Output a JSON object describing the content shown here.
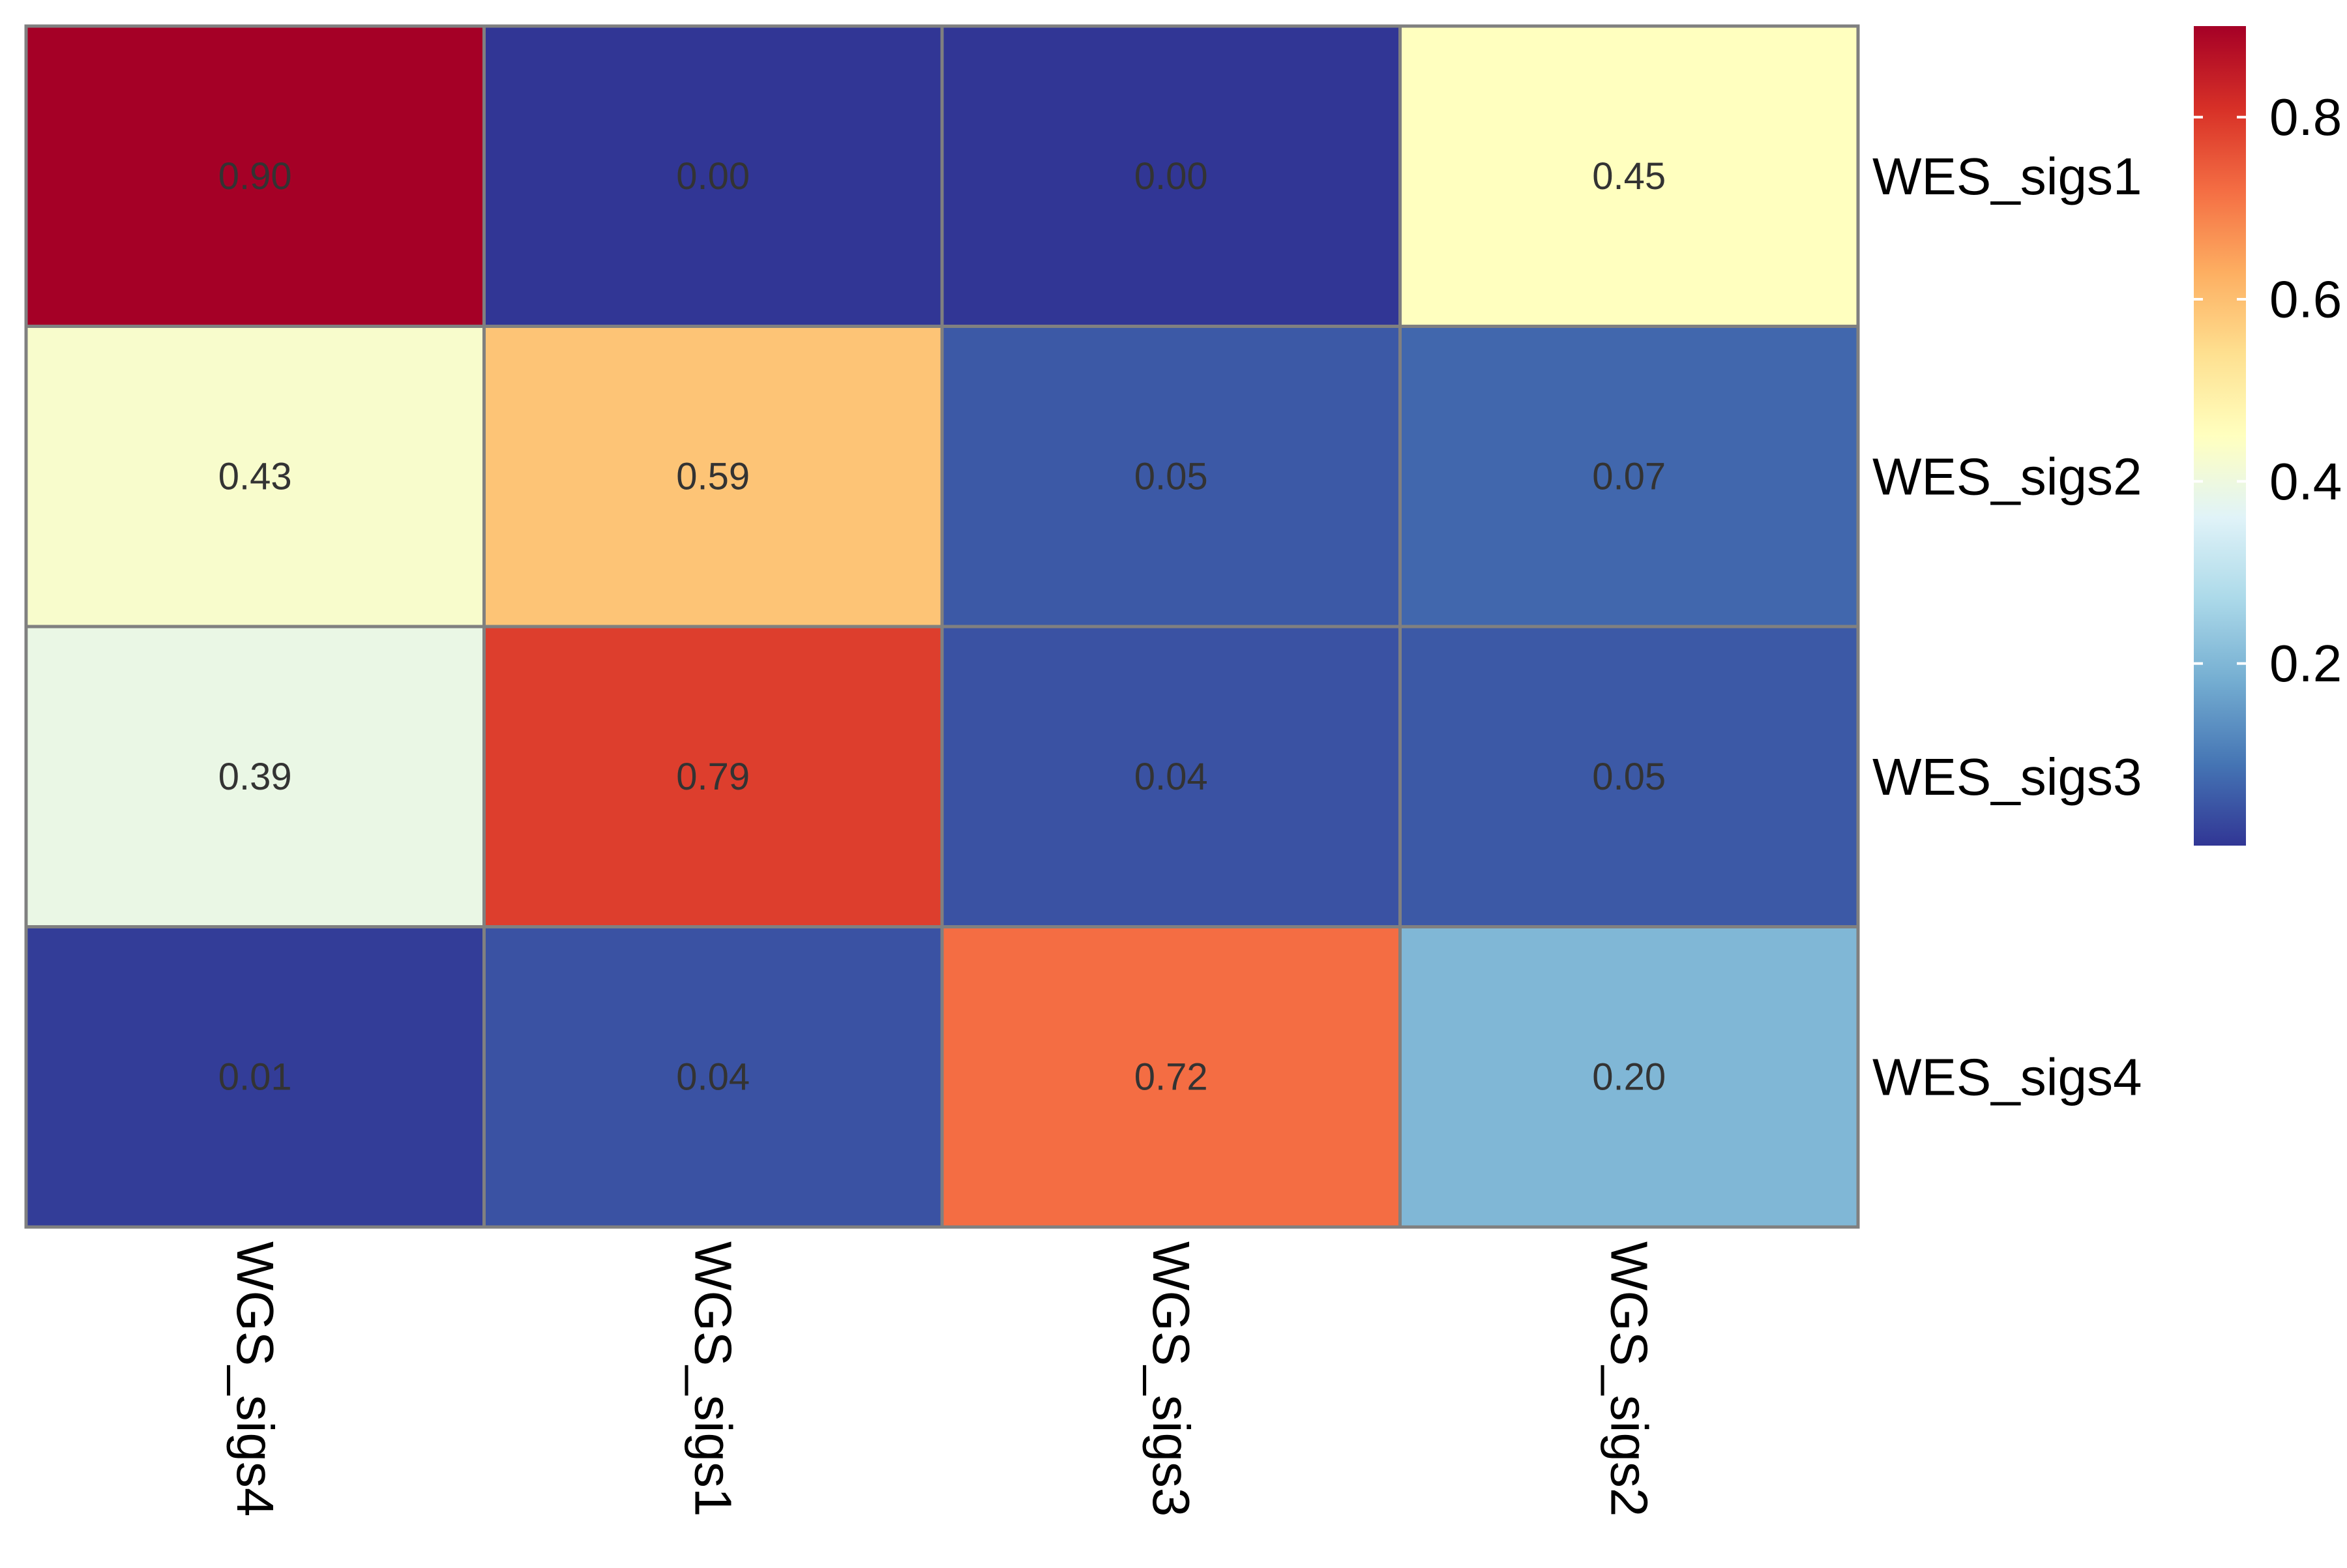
{
  "chart_data": {
    "type": "heatmap",
    "title": "",
    "xlabel": "",
    "ylabel": "",
    "columns": [
      "WGS_sigs4",
      "WGS_sigs1",
      "WGS_sigs3",
      "WGS_sigs2"
    ],
    "rows": [
      "WES_sigs1",
      "WES_sigs2",
      "WES_sigs3",
      "WES_sigs4"
    ],
    "values": [
      [
        0.9,
        0.0,
        0.0,
        0.45
      ],
      [
        0.43,
        0.59,
        0.05,
        0.07
      ],
      [
        0.39,
        0.79,
        0.04,
        0.05
      ],
      [
        0.01,
        0.04,
        0.72,
        0.2
      ]
    ],
    "cell_labels": [
      [
        "0.90",
        "0.00",
        "0.00",
        "0.45"
      ],
      [
        "0.43",
        "0.59",
        "0.05",
        "0.07"
      ],
      [
        "0.39",
        "0.79",
        "0.04",
        "0.05"
      ],
      [
        "0.01",
        "0.04",
        "0.72",
        "0.20"
      ]
    ],
    "color_range": [
      0.0,
      0.9
    ],
    "colormap": [
      "#313695",
      "#4575b4",
      "#74add1",
      "#abd9e9",
      "#e0f3f8",
      "#ffffbf",
      "#fee090",
      "#fdae61",
      "#f46d43",
      "#d73027",
      "#a50026"
    ],
    "legend": {
      "position": "right",
      "ticks": [
        "0.2",
        "0.4",
        "0.6",
        "0.8"
      ],
      "tick_values": [
        0.2,
        0.4,
        0.6,
        0.8
      ]
    },
    "grid": true,
    "cell_border_color": "#808080",
    "cell_text_color": "#333333"
  }
}
